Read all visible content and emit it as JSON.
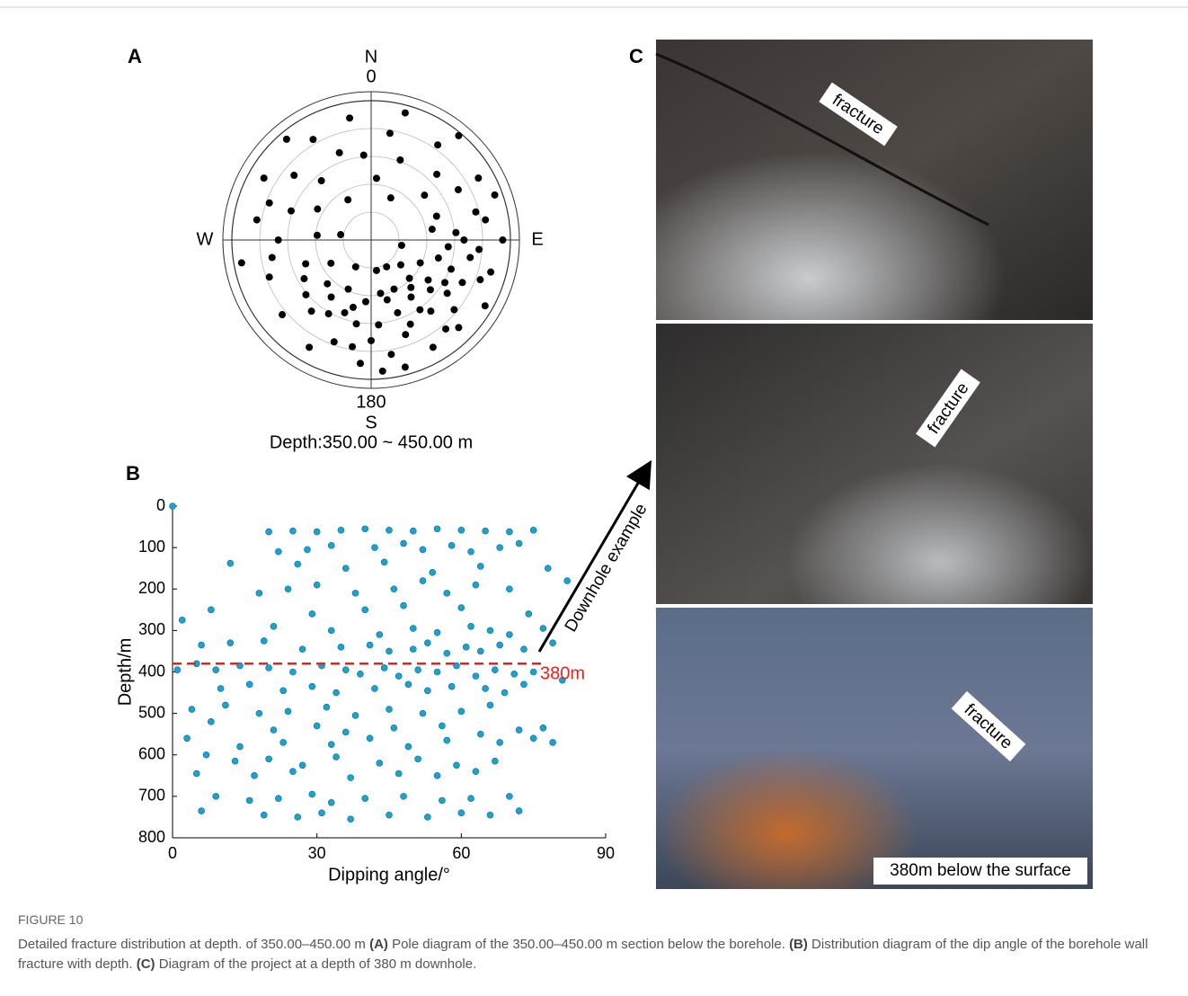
{
  "panel_labels": [
    "A",
    "B",
    "C"
  ],
  "chart_data": [
    {
      "type": "polar",
      "compass": {
        "north": "N",
        "south": "S",
        "west": "W",
        "east": "E"
      },
      "azimuth_ticks": [
        0,
        180
      ],
      "subtitle": "Depth:350.00 ~ 450.00 m",
      "rlim": [
        0,
        90
      ],
      "rticks": [
        18,
        36,
        54,
        72,
        90
      ],
      "color": "#000000",
      "azimuth": [
        10,
        20,
        35,
        45,
        60,
        75,
        90,
        100,
        110,
        120,
        130,
        140,
        150,
        160,
        170,
        180,
        190,
        200,
        210,
        220,
        230,
        240,
        250,
        260,
        270,
        280,
        290,
        300,
        310,
        320,
        330,
        340,
        350,
        5,
        25,
        50,
        80,
        95,
        105,
        115,
        125,
        135,
        145,
        155,
        165,
        175,
        185,
        195,
        205,
        215,
        225,
        250,
        275,
        300,
        330,
        355,
        100,
        130,
        150,
        170,
        160,
        140,
        120,
        110,
        95,
        85,
        70,
        60,
        130,
        145,
        165,
        175,
        185,
        200,
        155,
        135,
        115,
        125,
        105,
        90,
        80,
        70,
        140,
        170,
        190,
        210,
        230,
        260,
        290,
        320,
        15,
        40,
        240,
        280,
        210
      ],
      "dip": [
        70,
        55,
        75,
        60,
        80,
        70,
        85,
        65,
        75,
        55,
        70,
        60,
        80,
        50,
        75,
        65,
        55,
        70,
        80,
        60,
        75,
        50,
        70,
        85,
        60,
        75,
        55,
        80,
        65,
        50,
        75,
        60,
        80,
        40,
        30,
        45,
        40,
        50,
        45,
        35,
        45,
        35,
        45,
        35,
        40,
        55,
        40,
        45,
        35,
        45,
        40,
        45,
        35,
        40,
        30,
        55,
        20,
        25,
        20,
        20,
        65,
        75,
        85,
        55,
        70,
        55,
        45,
        65,
        50,
        55,
        85,
        85,
        80,
        50,
        60,
        80,
        65,
        60,
        80,
        60,
        75,
        85,
        40,
        35,
        70,
        55,
        55,
        65,
        70,
        85,
        85,
        88,
        30,
        20,
        20
      ]
    },
    {
      "type": "scatter",
      "xlabel": "Dipping angle/°",
      "ylabel": "Depth/m",
      "xlim": [
        0,
        90
      ],
      "xticks": [
        0,
        30,
        60,
        90
      ],
      "ylim": [
        0,
        800
      ],
      "y_inverted": true,
      "yticks": [
        0,
        100,
        200,
        300,
        400,
        500,
        600,
        700,
        800
      ],
      "color": "#1ba1d2",
      "reference_line": {
        "value": 380,
        "label": "380m",
        "color": "#e8231f"
      },
      "x": [
        0,
        20,
        25,
        30,
        35,
        40,
        45,
        50,
        55,
        60,
        65,
        70,
        75,
        22,
        28,
        33,
        42,
        48,
        52,
        58,
        62,
        68,
        72,
        12,
        26,
        36,
        44,
        54,
        64,
        78,
        18,
        24,
        30,
        38,
        46,
        52,
        57,
        63,
        70,
        82,
        8,
        29,
        40,
        48,
        60,
        74,
        2,
        21,
        33,
        43,
        50,
        55,
        62,
        66,
        70,
        77,
        6,
        12,
        19,
        27,
        35,
        41,
        45,
        50,
        53,
        57,
        61,
        64,
        68,
        73,
        79,
        1,
        5,
        9,
        14,
        20,
        25,
        31,
        36,
        39,
        44,
        47,
        51,
        55,
        59,
        63,
        67,
        71,
        75,
        81,
        10,
        16,
        23,
        29,
        34,
        42,
        49,
        53,
        58,
        65,
        69,
        73,
        4,
        11,
        18,
        24,
        32,
        38,
        45,
        52,
        60,
        66,
        8,
        21,
        30,
        36,
        46,
        56,
        64,
        72,
        77,
        3,
        14,
        23,
        33,
        41,
        49,
        57,
        68,
        75,
        79,
        7,
        13,
        20,
        27,
        34,
        43,
        51,
        59,
        67,
        5,
        17,
        25,
        37,
        47,
        55,
        63,
        9,
        16,
        22,
        29,
        33,
        40,
        48,
        56,
        62,
        70,
        6,
        19,
        26,
        31,
        37,
        45,
        53,
        60,
        66,
        72
      ],
      "values": [
        0,
        62,
        60,
        62,
        58,
        55,
        58,
        60,
        55,
        58,
        60,
        62,
        58,
        110,
        105,
        95,
        100,
        90,
        105,
        95,
        110,
        100,
        90,
        138,
        140,
        150,
        135,
        160,
        145,
        150,
        210,
        200,
        190,
        210,
        200,
        180,
        210,
        190,
        200,
        180,
        250,
        260,
        250,
        240,
        245,
        260,
        275,
        290,
        300,
        310,
        295,
        305,
        290,
        300,
        310,
        295,
        335,
        330,
        325,
        345,
        340,
        335,
        350,
        345,
        330,
        355,
        340,
        350,
        335,
        345,
        330,
        395,
        380,
        395,
        385,
        390,
        400,
        385,
        395,
        405,
        390,
        410,
        395,
        400,
        385,
        410,
        395,
        405,
        400,
        420,
        440,
        430,
        445,
        435,
        450,
        440,
        430,
        445,
        435,
        440,
        450,
        430,
        490,
        480,
        500,
        495,
        485,
        505,
        490,
        500,
        495,
        480,
        520,
        540,
        530,
        545,
        535,
        530,
        550,
        540,
        535,
        560,
        580,
        570,
        575,
        560,
        580,
        565,
        570,
        560,
        570,
        600,
        615,
        610,
        625,
        605,
        620,
        610,
        625,
        615,
        645,
        650,
        640,
        655,
        645,
        650,
        640,
        700,
        710,
        705,
        695,
        715,
        705,
        700,
        710,
        705,
        700,
        735,
        745,
        750,
        740,
        755,
        745,
        750,
        740,
        745,
        735
      ]
    }
  ],
  "photos": {
    "labels": [
      "fracture",
      "fracture",
      "fracture"
    ],
    "caption": "380m below the surface",
    "arrow_label": "Downhole example"
  },
  "figure": {
    "label": "FIGURE 10",
    "caption": [
      {
        "text": "Detailed fracture distribution at depth. of 350.00–450.00 m "
      },
      {
        "text": "(A)",
        "bold": true
      },
      {
        "text": " Pole diagram of the 350.00–450.00 m section below the borehole. "
      },
      {
        "text": "(B)",
        "bold": true
      },
      {
        "text": " Distribution diagram of the dip angle of the borehole wall fracture with depth. "
      },
      {
        "text": "(C)",
        "bold": true
      },
      {
        "text": " Diagram of the project at a depth of 380 m downhole."
      }
    ]
  }
}
